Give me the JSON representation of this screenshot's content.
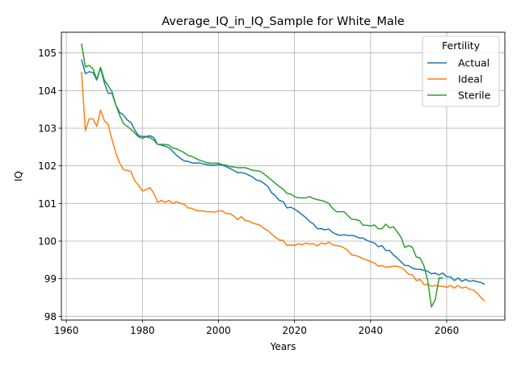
{
  "chart_data": {
    "type": "line",
    "title": "Average_IQ_in_IQ_Sample for White_Male",
    "xlabel": "Years",
    "ylabel": "IQ",
    "xlim": [
      1958.7,
      2075.3
    ],
    "ylim": [
      97.9,
      105.55
    ],
    "xticks": [
      1960,
      1980,
      2000,
      2020,
      2040,
      2060
    ],
    "yticks": [
      98,
      99,
      100,
      101,
      102,
      103,
      104,
      105
    ],
    "grid": true,
    "legend": {
      "title": "Fertility",
      "placement": "top-right"
    },
    "series": [
      {
        "name": "Actual",
        "color": "#1f77b4",
        "points": [
          [
            1964,
            104.83
          ],
          [
            1965,
            104.45
          ],
          [
            1966,
            104.5
          ],
          [
            1967,
            104.48
          ],
          [
            1968,
            104.28
          ],
          [
            1969,
            104.6
          ],
          [
            1970,
            104.2
          ],
          [
            1971,
            103.93
          ],
          [
            1972,
            103.93
          ],
          [
            1973,
            103.62
          ],
          [
            1974,
            103.42
          ],
          [
            1975,
            103.35
          ],
          [
            1976,
            103.22
          ],
          [
            1977,
            103.15
          ],
          [
            1978,
            102.95
          ],
          [
            1979,
            102.8
          ],
          [
            1980,
            102.78
          ],
          [
            1981,
            102.78
          ],
          [
            1982,
            102.8
          ],
          [
            1983,
            102.75
          ],
          [
            1984,
            102.57
          ],
          [
            1985,
            102.55
          ],
          [
            1986,
            102.52
          ],
          [
            1987,
            102.48
          ],
          [
            1988,
            102.38
          ],
          [
            1989,
            102.28
          ],
          [
            1990,
            102.2
          ],
          [
            1991,
            102.13
          ],
          [
            1992,
            102.12
          ],
          [
            1993,
            102.08
          ],
          [
            1994,
            102.07
          ],
          [
            1995,
            102.08
          ],
          [
            1996,
            102.05
          ],
          [
            1997,
            102.03
          ],
          [
            1998,
            102.02
          ],
          [
            1999,
            102.02
          ],
          [
            2000,
            102.03
          ],
          [
            2001,
            102.02
          ],
          [
            2002,
            101.98
          ],
          [
            2003,
            101.93
          ],
          [
            2004,
            101.88
          ],
          [
            2005,
            101.82
          ],
          [
            2006,
            101.82
          ],
          [
            2007,
            101.8
          ],
          [
            2008,
            101.75
          ],
          [
            2009,
            101.7
          ],
          [
            2010,
            101.62
          ],
          [
            2011,
            101.6
          ],
          [
            2012,
            101.53
          ],
          [
            2013,
            101.45
          ],
          [
            2014,
            101.28
          ],
          [
            2015,
            101.2
          ],
          [
            2016,
            101.08
          ],
          [
            2017,
            101.05
          ],
          [
            2018,
            100.88
          ],
          [
            2019,
            100.9
          ],
          [
            2020,
            100.85
          ],
          [
            2021,
            100.78
          ],
          [
            2022,
            100.7
          ],
          [
            2023,
            100.62
          ],
          [
            2024,
            100.52
          ],
          [
            2025,
            100.45
          ],
          [
            2026,
            100.33
          ],
          [
            2027,
            100.33
          ],
          [
            2028,
            100.3
          ],
          [
            2029,
            100.32
          ],
          [
            2030,
            100.23
          ],
          [
            2031,
            100.18
          ],
          [
            2032,
            100.15
          ],
          [
            2033,
            100.17
          ],
          [
            2034,
            100.15
          ],
          [
            2035,
            100.15
          ],
          [
            2036,
            100.13
          ],
          [
            2037,
            100.08
          ],
          [
            2038,
            100.08
          ],
          [
            2039,
            100.02
          ],
          [
            2040,
            99.98
          ],
          [
            2041,
            99.95
          ],
          [
            2042,
            99.85
          ],
          [
            2043,
            99.88
          ],
          [
            2044,
            99.75
          ],
          [
            2045,
            99.75
          ],
          [
            2046,
            99.63
          ],
          [
            2047,
            99.55
          ],
          [
            2048,
            99.45
          ],
          [
            2049,
            99.35
          ],
          [
            2050,
            99.35
          ],
          [
            2051,
            99.28
          ],
          [
            2052,
            99.25
          ],
          [
            2053,
            99.25
          ],
          [
            2054,
            99.22
          ],
          [
            2055,
            99.2
          ],
          [
            2056,
            99.13
          ],
          [
            2057,
            99.15
          ],
          [
            2058,
            99.1
          ],
          [
            2059,
            99.15
          ],
          [
            2060,
            99.05
          ],
          [
            2061,
            99.05
          ],
          [
            2062,
            98.95
          ],
          [
            2063,
            99.02
          ],
          [
            2064,
            98.93
          ],
          [
            2065,
            98.98
          ],
          [
            2066,
            98.93
          ],
          [
            2067,
            98.95
          ],
          [
            2068,
            98.92
          ],
          [
            2069,
            98.9
          ],
          [
            2070,
            98.85
          ]
        ]
      },
      {
        "name": "Ideal",
        "color": "#ff7f0e",
        "points": [
          [
            1964,
            104.5
          ],
          [
            1965,
            102.93
          ],
          [
            1966,
            103.25
          ],
          [
            1967,
            103.25
          ],
          [
            1968,
            103.05
          ],
          [
            1969,
            103.48
          ],
          [
            1970,
            103.2
          ],
          [
            1971,
            103.1
          ],
          [
            1972,
            102.7
          ],
          [
            1973,
            102.35
          ],
          [
            1974,
            102.08
          ],
          [
            1975,
            101.9
          ],
          [
            1976,
            101.88
          ],
          [
            1977,
            101.85
          ],
          [
            1978,
            101.6
          ],
          [
            1979,
            101.48
          ],
          [
            1980,
            101.33
          ],
          [
            1981,
            101.37
          ],
          [
            1982,
            101.42
          ],
          [
            1983,
            101.27
          ],
          [
            1984,
            101.03
          ],
          [
            1985,
            101.08
          ],
          [
            1986,
            101.03
          ],
          [
            1987,
            101.08
          ],
          [
            1988,
            101.0
          ],
          [
            1989,
            101.05
          ],
          [
            1990,
            101.0
          ],
          [
            1991,
            100.98
          ],
          [
            1992,
            100.88
          ],
          [
            1993,
            100.87
          ],
          [
            1994,
            100.82
          ],
          [
            1995,
            100.8
          ],
          [
            1996,
            100.8
          ],
          [
            1997,
            100.78
          ],
          [
            1998,
            100.78
          ],
          [
            1999,
            100.77
          ],
          [
            2000,
            100.8
          ],
          [
            2001,
            100.8
          ],
          [
            2002,
            100.73
          ],
          [
            2003,
            100.73
          ],
          [
            2004,
            100.67
          ],
          [
            2005,
            100.57
          ],
          [
            2006,
            100.65
          ],
          [
            2007,
            100.55
          ],
          [
            2008,
            100.53
          ],
          [
            2009,
            100.48
          ],
          [
            2010,
            100.45
          ],
          [
            2011,
            100.42
          ],
          [
            2012,
            100.33
          ],
          [
            2013,
            100.28
          ],
          [
            2014,
            100.18
          ],
          [
            2015,
            100.1
          ],
          [
            2016,
            100.03
          ],
          [
            2017,
            100.02
          ],
          [
            2018,
            99.88
          ],
          [
            2019,
            99.9
          ],
          [
            2020,
            99.88
          ],
          [
            2021,
            99.93
          ],
          [
            2022,
            99.9
          ],
          [
            2023,
            99.95
          ],
          [
            2024,
            99.92
          ],
          [
            2025,
            99.93
          ],
          [
            2026,
            99.87
          ],
          [
            2027,
            99.95
          ],
          [
            2028,
            99.92
          ],
          [
            2029,
            99.97
          ],
          [
            2030,
            99.9
          ],
          [
            2031,
            99.88
          ],
          [
            2032,
            99.87
          ],
          [
            2033,
            99.82
          ],
          [
            2034,
            99.75
          ],
          [
            2035,
            99.63
          ],
          [
            2036,
            99.62
          ],
          [
            2037,
            99.58
          ],
          [
            2038,
            99.53
          ],
          [
            2039,
            99.5
          ],
          [
            2040,
            99.45
          ],
          [
            2041,
            99.42
          ],
          [
            2042,
            99.33
          ],
          [
            2043,
            99.35
          ],
          [
            2044,
            99.3
          ],
          [
            2045,
            99.32
          ],
          [
            2046,
            99.33
          ],
          [
            2047,
            99.33
          ],
          [
            2048,
            99.3
          ],
          [
            2049,
            99.22
          ],
          [
            2050,
            99.12
          ],
          [
            2051,
            99.1
          ],
          [
            2052,
            98.95
          ],
          [
            2053,
            98.98
          ],
          [
            2054,
            98.85
          ],
          [
            2055,
            98.85
          ],
          [
            2056,
            98.8
          ],
          [
            2057,
            98.82
          ],
          [
            2058,
            98.8
          ],
          [
            2059,
            98.8
          ],
          [
            2060,
            98.77
          ],
          [
            2061,
            98.82
          ],
          [
            2062,
            98.75
          ],
          [
            2063,
            98.82
          ],
          [
            2064,
            98.75
          ],
          [
            2065,
            98.78
          ],
          [
            2066,
            98.72
          ],
          [
            2067,
            98.7
          ],
          [
            2068,
            98.62
          ],
          [
            2069,
            98.5
          ],
          [
            2070,
            98.4
          ]
        ]
      },
      {
        "name": "Sterile",
        "color": "#2ca02c",
        "points": [
          [
            1964,
            105.25
          ],
          [
            1965,
            104.63
          ],
          [
            1966,
            104.67
          ],
          [
            1967,
            104.58
          ],
          [
            1968,
            104.3
          ],
          [
            1969,
            104.62
          ],
          [
            1970,
            104.28
          ],
          [
            1971,
            104.13
          ],
          [
            1972,
            103.97
          ],
          [
            1973,
            103.62
          ],
          [
            1974,
            103.35
          ],
          [
            1975,
            103.13
          ],
          [
            1976,
            103.05
          ],
          [
            1977,
            102.97
          ],
          [
            1978,
            102.87
          ],
          [
            1979,
            102.77
          ],
          [
            1980,
            102.73
          ],
          [
            1981,
            102.77
          ],
          [
            1982,
            102.75
          ],
          [
            1983,
            102.68
          ],
          [
            1984,
            102.57
          ],
          [
            1985,
            102.57
          ],
          [
            1986,
            102.57
          ],
          [
            1987,
            102.55
          ],
          [
            1988,
            102.47
          ],
          [
            1989,
            102.45
          ],
          [
            1990,
            102.4
          ],
          [
            1991,
            102.35
          ],
          [
            1992,
            102.28
          ],
          [
            1993,
            102.25
          ],
          [
            1994,
            102.2
          ],
          [
            1995,
            102.15
          ],
          [
            1996,
            102.12
          ],
          [
            1997,
            102.08
          ],
          [
            1998,
            102.07
          ],
          [
            1999,
            102.07
          ],
          [
            2000,
            102.07
          ],
          [
            2001,
            102.03
          ],
          [
            2002,
            102.02
          ],
          [
            2003,
            101.98
          ],
          [
            2004,
            101.97
          ],
          [
            2005,
            101.95
          ],
          [
            2006,
            101.95
          ],
          [
            2007,
            101.95
          ],
          [
            2008,
            101.92
          ],
          [
            2009,
            101.88
          ],
          [
            2010,
            101.87
          ],
          [
            2011,
            101.85
          ],
          [
            2012,
            101.78
          ],
          [
            2013,
            101.7
          ],
          [
            2014,
            101.62
          ],
          [
            2015,
            101.53
          ],
          [
            2016,
            101.45
          ],
          [
            2017,
            101.38
          ],
          [
            2018,
            101.27
          ],
          [
            2019,
            101.25
          ],
          [
            2020,
            101.18
          ],
          [
            2021,
            101.15
          ],
          [
            2022,
            101.15
          ],
          [
            2023,
            101.15
          ],
          [
            2024,
            101.18
          ],
          [
            2025,
            101.13
          ],
          [
            2026,
            101.1
          ],
          [
            2027,
            101.08
          ],
          [
            2028,
            101.05
          ],
          [
            2029,
            101.0
          ],
          [
            2030,
            100.87
          ],
          [
            2031,
            100.78
          ],
          [
            2032,
            100.78
          ],
          [
            2033,
            100.78
          ],
          [
            2034,
            100.68
          ],
          [
            2035,
            100.58
          ],
          [
            2036,
            100.57
          ],
          [
            2037,
            100.55
          ],
          [
            2038,
            100.42
          ],
          [
            2039,
            100.42
          ],
          [
            2040,
            100.4
          ],
          [
            2041,
            100.43
          ],
          [
            2042,
            100.33
          ],
          [
            2043,
            100.33
          ],
          [
            2044,
            100.45
          ],
          [
            2045,
            100.35
          ],
          [
            2046,
            100.38
          ],
          [
            2047,
            100.25
          ],
          [
            2048,
            100.1
          ],
          [
            2049,
            99.83
          ],
          [
            2050,
            99.88
          ],
          [
            2051,
            99.83
          ],
          [
            2052,
            99.58
          ],
          [
            2053,
            99.55
          ],
          [
            2054,
            99.35
          ],
          [
            2055,
            98.95
          ],
          [
            2056,
            98.25
          ],
          [
            2057,
            98.45
          ],
          [
            2058,
            99.02
          ],
          [
            2059,
            99.02
          ]
        ]
      }
    ]
  }
}
